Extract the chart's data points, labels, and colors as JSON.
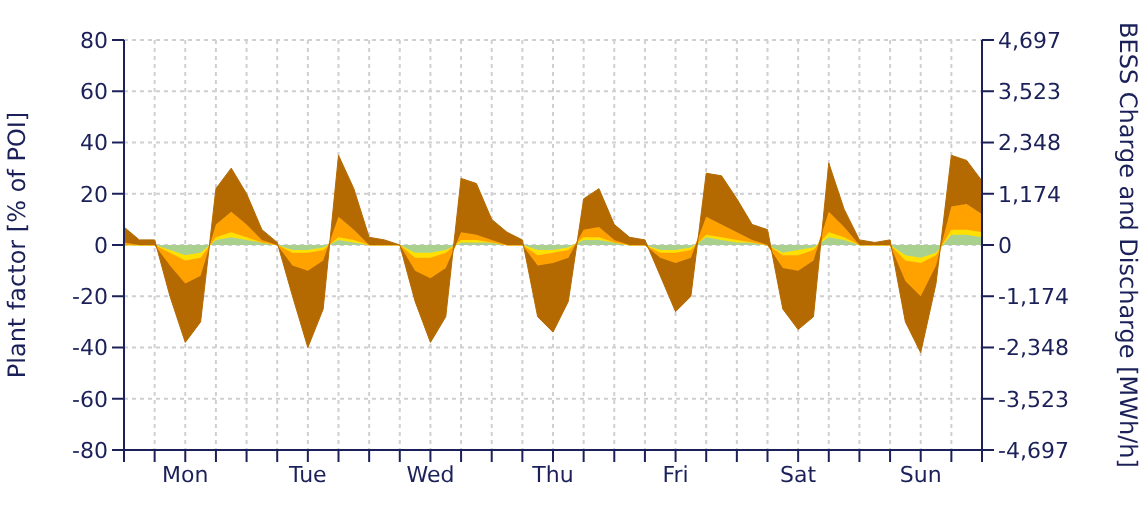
{
  "chart_data": {
    "type": "area",
    "stacked": true,
    "ylabel": "Plant factor [% of POI]",
    "y2label": "BESS Charge and Discharge [MWh/h]",
    "categories": [
      null,
      null,
      null,
      null,
      "Mon",
      null,
      null,
      null,
      null,
      null,
      null,
      null,
      "Tue",
      null,
      null,
      null,
      null,
      null,
      null,
      null,
      "Wed",
      null,
      null,
      null,
      null,
      null,
      null,
      null,
      "Thu",
      null,
      null,
      null,
      null,
      null,
      null,
      null,
      "Fri",
      null,
      null,
      null,
      null,
      null,
      null,
      null,
      "Sat",
      null,
      null,
      null,
      null,
      null,
      null,
      null,
      "Sun",
      null,
      null,
      null,
      null
    ],
    "series": [
      {
        "color": "#a9d08e",
        "values": [
          0,
          0,
          0,
          -2,
          -4,
          -3,
          2,
          3,
          2,
          1,
          0,
          -2,
          -2,
          -1,
          2,
          1,
          0,
          0,
          0,
          -3,
          -3,
          -2,
          1,
          1,
          1,
          0,
          0,
          -2,
          -2,
          -1,
          2,
          2,
          1,
          0,
          0,
          -2,
          -2,
          -1,
          3,
          2,
          1,
          1,
          0,
          -3,
          -2,
          -1,
          3,
          2,
          0,
          0,
          0,
          -4,
          -5,
          -3,
          4,
          4,
          3
        ]
      },
      {
        "color": "#ffe000",
        "values": [
          0,
          0,
          0,
          -1,
          -2,
          -2,
          1,
          2,
          1,
          0,
          0,
          -1,
          -1,
          -1,
          1,
          1,
          0,
          0,
          0,
          -2,
          -2,
          -1,
          1,
          1,
          0,
          0,
          0,
          -2,
          -1,
          -1,
          1,
          1,
          0,
          0,
          0,
          -1,
          -1,
          -1,
          1,
          1,
          1,
          0,
          0,
          -1,
          -2,
          -1,
          2,
          1,
          0,
          0,
          0,
          -2,
          -2,
          -1,
          2,
          2,
          2
        ]
      },
      {
        "color": "#ffa200",
        "values": [
          1,
          0,
          0,
          -5,
          -9,
          -7,
          5,
          8,
          5,
          1,
          0,
          -5,
          -7,
          -4,
          8,
          4,
          0,
          0,
          0,
          -5,
          -8,
          -6,
          3,
          2,
          1,
          0,
          0,
          -4,
          -4,
          -3,
          3,
          4,
          1,
          0,
          0,
          -2,
          -4,
          -3,
          7,
          5,
          3,
          1,
          0,
          -5,
          -6,
          -4,
          8,
          4,
          0,
          0,
          0,
          -8,
          -13,
          -4,
          9,
          10,
          7
        ]
      },
      {
        "color": "#b46a00",
        "values": [
          6,
          2,
          2,
          -12,
          -23,
          -18,
          14,
          17,
          12,
          4,
          1,
          -12,
          -30,
          -19,
          24,
          16,
          3,
          2,
          0,
          -12,
          -25,
          -19,
          21,
          20,
          8,
          5,
          2,
          -20,
          -27,
          -17,
          12,
          15,
          6,
          3,
          2,
          -7,
          -19,
          -15,
          17,
          19,
          13,
          6,
          6,
          -16,
          -23,
          -22,
          19,
          7,
          2,
          1,
          2,
          -16,
          -22,
          -7,
          20,
          17,
          13
        ]
      }
    ],
    "ylim": [
      -80,
      80
    ],
    "yticks": [
      -80,
      -60,
      -40,
      -20,
      0,
      20,
      40,
      60,
      80
    ],
    "y2lim": [
      -4697,
      4697
    ],
    "y2ticks": [
      {
        "value": -4697,
        "label": "-4,697"
      },
      {
        "value": -3523,
        "label": "-3,523"
      },
      {
        "value": -2348,
        "label": "-2,348"
      },
      {
        "value": -1174,
        "label": "-1,174"
      },
      0,
      {
        "value": 1174,
        "label": "1,174"
      },
      {
        "value": 2348,
        "label": "2,348"
      },
      {
        "value": 3523,
        "label": "3,523"
      },
      {
        "value": 4697,
        "label": "4,697"
      }
    ],
    "grid": true
  }
}
